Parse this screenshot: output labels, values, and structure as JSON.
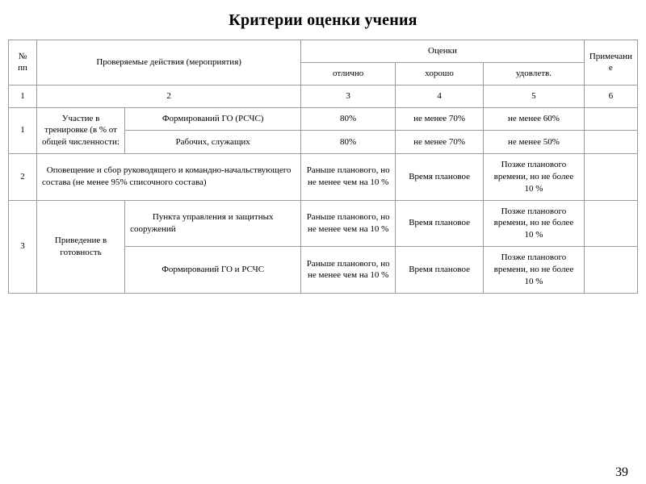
{
  "page_number": "39",
  "title": "Критерии оценки учения",
  "colors": {
    "border": "#9a9a9a",
    "text": "#000000",
    "background": "#ffffff"
  },
  "typography": {
    "title_fontsize_pt": 15,
    "cell_fontsize_pt": 8,
    "font_family": "Times New Roman"
  },
  "table": {
    "headers": {
      "num": "№ пп",
      "actions": "Проверяемые действия (мероприятия)",
      "grades_group": "Оценки",
      "grade_excellent": "отлично",
      "grade_good": "хорошо",
      "grade_sat": "удовлетв.",
      "note": "Примечание"
    },
    "index_row": {
      "c1": "1",
      "c2": "2",
      "c3": "3",
      "c4": "4",
      "c5": "5",
      "c6": "6"
    },
    "rows": {
      "r1": {
        "num": "1",
        "action": "Участие в тренировке (в % от общей численности:",
        "sub_a": "Формирований ГО (РСЧС)",
        "sub_b": "Рабочих, служащих",
        "a_excellent": "80%",
        "a_good": "не менее 70%",
        "a_sat": "не менее 60%",
        "a_note": "",
        "b_excellent": "80%",
        "b_good": "не менее 70%",
        "b_sat": "не менее 50%",
        "b_note": ""
      },
      "r2": {
        "num": "2",
        "action": "Оповещение и сбор руководящего и командно-начальствующего состава (не менее 95% списочного состава)",
        "excellent": "Раньше планового, но не менее чем на 10 %",
        "good": "Время плановое",
        "sat": "Позже планового времени, но не более 10 %",
        "note": ""
      },
      "r3": {
        "num": "3",
        "action": "Приведение в готовность",
        "sub_a": "Пункта управления и защитных сооружений",
        "sub_b": "Формирований ГО и РСЧС",
        "a_excellent": "Раньше планового, но не менее чем на 10 %",
        "a_good": "Время плановое",
        "a_sat": "Позже планового времени, но не более 10 %",
        "a_note": "",
        "b_excellent": "Раньше планового, но не менее чем на 10 %",
        "b_good": "Время плановое",
        "b_sat": "Позже планового времени, но не более 10 %",
        "b_note": ""
      }
    }
  }
}
